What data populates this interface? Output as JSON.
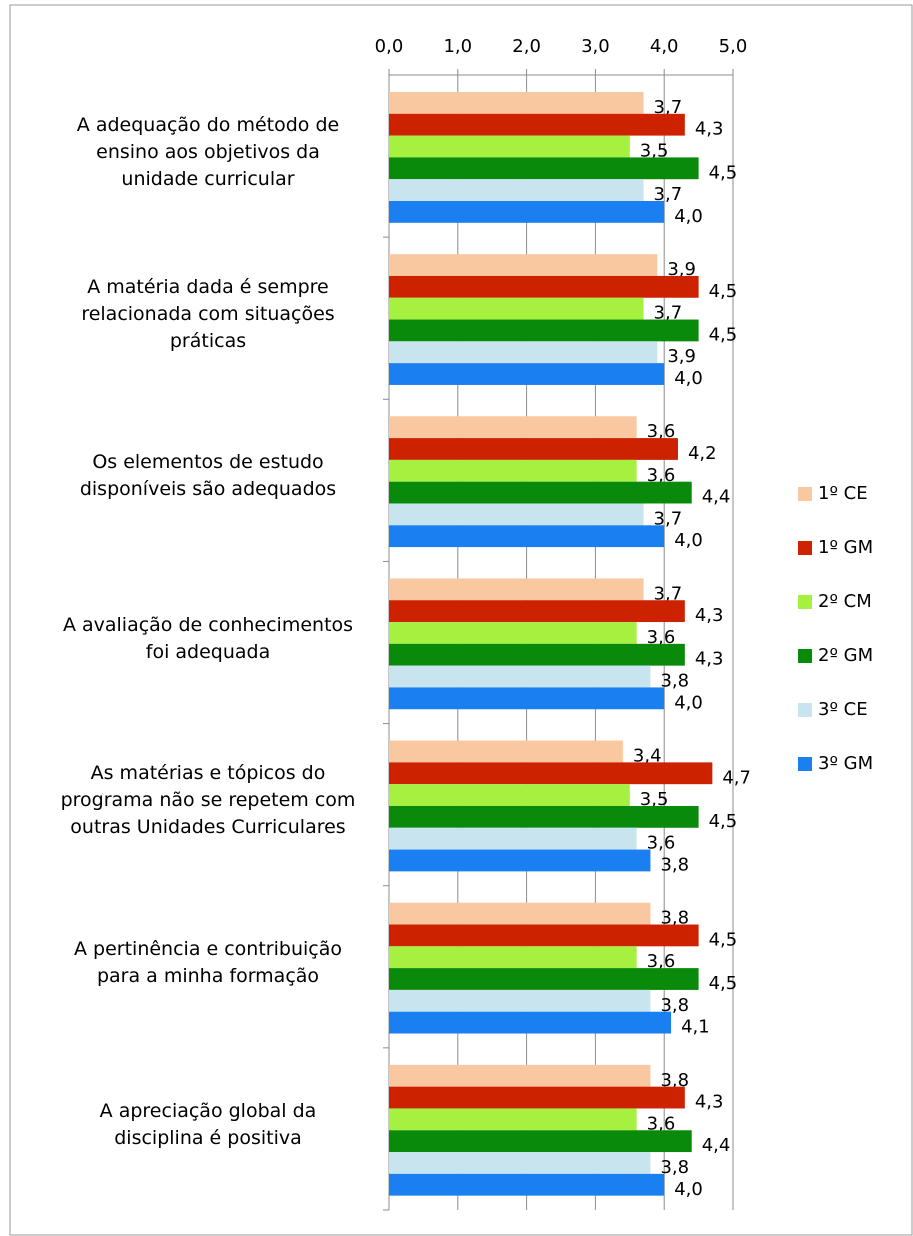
{
  "chart_data": {
    "type": "hbar",
    "categories": [
      "A adequação do método de\nensino aos objetivos da\nunidade curricular",
      "A matéria dada é sempre\nrelacionada com situações\npráticas",
      "Os elementos de estudo\ndisponíveis são adequados",
      "A avaliação de conhecimentos\nfoi adequada",
      "As matérias e tópicos do\nprograma não se repetem com\noutras Unidades Curriculares",
      "A pertinência e contribuição\npara a minha formação",
      "A apreciação global da\ndisciplina é positiva"
    ],
    "series": [
      {
        "name": "1º CE",
        "color": "#fac8a0",
        "values": [
          3.7,
          3.9,
          3.6,
          3.7,
          3.4,
          3.8,
          3.8
        ],
        "value_labels": [
          "3,7",
          "3,9",
          "3,6",
          "3,7",
          "3,4",
          "3,8",
          "3,8"
        ]
      },
      {
        "name": "1º GM",
        "color": "#cc2200",
        "values": [
          4.3,
          4.5,
          4.2,
          4.3,
          4.7,
          4.5,
          4.3
        ],
        "value_labels": [
          "4,3",
          "4,5",
          "4,2",
          "4,3",
          "4,7",
          "4,5",
          "4,3"
        ]
      },
      {
        "name": "2º CM",
        "color": "#a6f040",
        "values": [
          3.5,
          3.7,
          3.6,
          3.6,
          3.5,
          3.6,
          3.6
        ],
        "value_labels": [
          "3,5",
          "3,7",
          "3,6",
          "3,6",
          "3,5",
          "3,6",
          "3,6"
        ]
      },
      {
        "name": "2º GM",
        "color": "#0a8a0a",
        "values": [
          4.5,
          4.5,
          4.4,
          4.3,
          4.5,
          4.5,
          4.4
        ],
        "value_labels": [
          "4,5",
          "4,5",
          "4,4",
          "4,3",
          "4,5",
          "4,5",
          "4,4"
        ]
      },
      {
        "name": "3º CE",
        "color": "#c8e4ee",
        "values": [
          3.7,
          3.9,
          3.7,
          3.8,
          3.6,
          3.8,
          3.8
        ],
        "value_labels": [
          "3,7",
          "3,9",
          "3,7",
          "3,8",
          "3,6",
          "3,8",
          "3,8"
        ]
      },
      {
        "name": "3º GM",
        "color": "#1a7ff0",
        "values": [
          4.0,
          4.0,
          4.0,
          4.0,
          3.8,
          4.1,
          4.0
        ],
        "value_labels": [
          "4,0",
          "4,0",
          "4,0",
          "4,0",
          "3,8",
          "4,1",
          "4,0"
        ]
      }
    ],
    "xlim": [
      0,
      5
    ],
    "xticks": [
      {
        "value": 0,
        "label": "0,0"
      },
      {
        "value": 1,
        "label": "1,0"
      },
      {
        "value": 2,
        "label": "2,0"
      },
      {
        "value": 3,
        "label": "3,0"
      },
      {
        "value": 4,
        "label": "4,0"
      },
      {
        "value": 5,
        "label": "5,0"
      }
    ],
    "grid": true,
    "legend": "right"
  }
}
